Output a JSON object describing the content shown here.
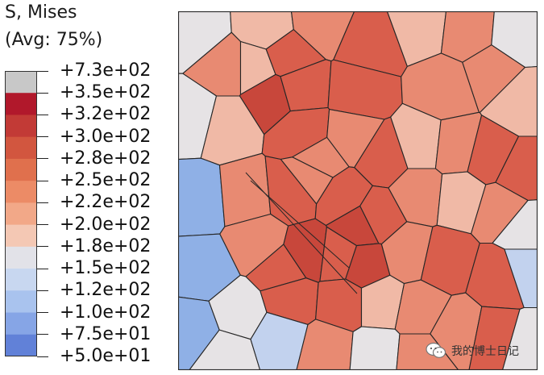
{
  "legend": {
    "variable": "S, Mises",
    "averaging": "(Avg: 75%)",
    "levels": [
      {
        "label": "+7.3e+02",
        "color": "#c8c8c8"
      },
      {
        "label": "+3.5e+02",
        "color": "#b1182b"
      },
      {
        "label": "+3.2e+02",
        "color": "#c23a36"
      },
      {
        "label": "+3.0e+02",
        "color": "#d2563f"
      },
      {
        "label": "+2.8e+02",
        "color": "#e0704d"
      },
      {
        "label": "+2.5e+02",
        "color": "#ec8b66"
      },
      {
        "label": "+2.2e+02",
        "color": "#f2a888"
      },
      {
        "label": "+2.0e+02",
        "color": "#f4c8b4"
      },
      {
        "label": "+1.8e+02",
        "color": "#e2e2e8"
      },
      {
        "label": "+1.5e+02",
        "color": "#c8d7f0"
      },
      {
        "label": "+1.2e+02",
        "color": "#a9c3ee"
      },
      {
        "label": "+1.0e+02",
        "color": "#86a5e6"
      },
      {
        "label": "+7.5e+01",
        "color": "#6181d8"
      },
      {
        "label": "+5.0e+01",
        "color": "#3a57c2"
      }
    ]
  },
  "watermark": {
    "text": "我的博士日记",
    "icon": "wechat-icon"
  },
  "palette": {
    "red_dark": "#c8473b",
    "red": "#d95e4c",
    "red_light": "#e88a72",
    "pink": "#f0b9a6",
    "neutral": "#e6e3e5",
    "blue_light": "#c2d2ee",
    "blue": "#8fb0e6",
    "boundary": "#262626"
  }
}
